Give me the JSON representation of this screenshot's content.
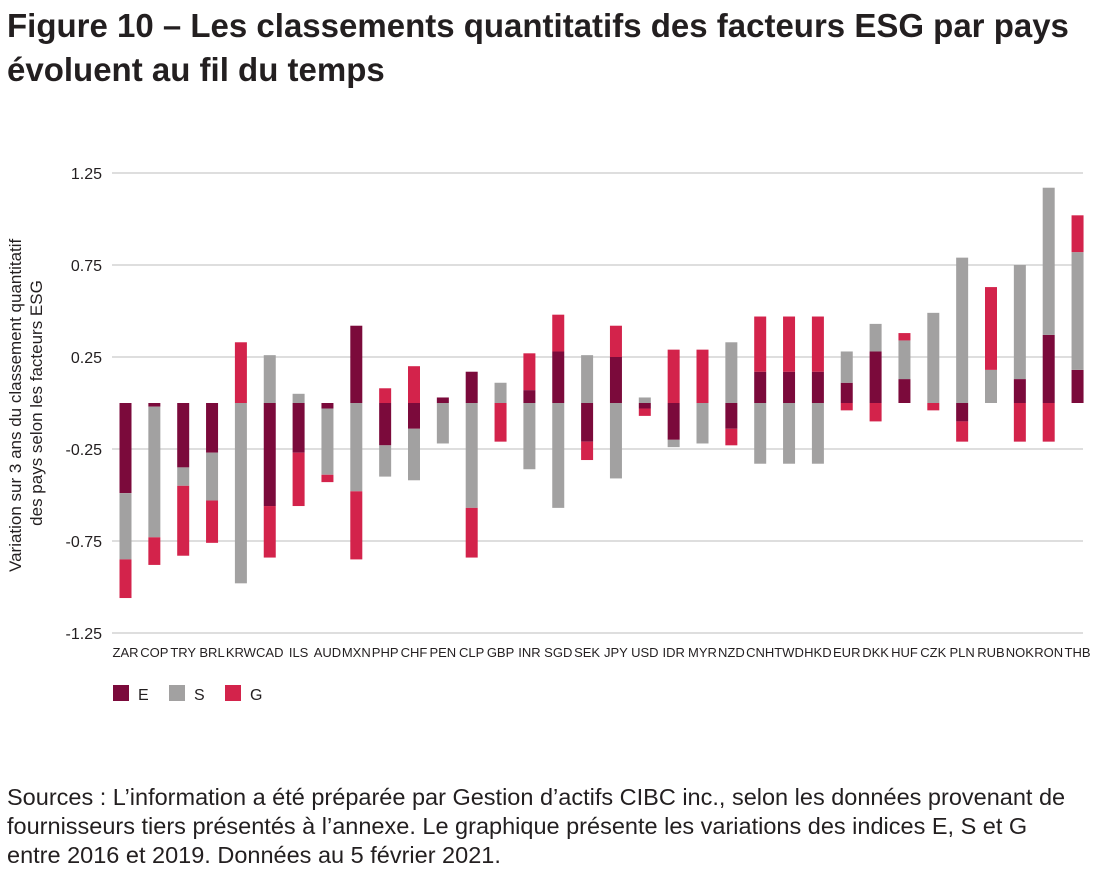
{
  "figure": {
    "title": "Figure 10 – Les classements quantitatifs des facteurs ESG par pays évoluent au fil du temps",
    "source": "Sources : L’information a été préparée par Gestion d’actifs CIBC inc., selon les données provenant de fournisseurs tiers présentés à l’annexe. Le graphique présente les variations des indices E, S et G entre 2016 et 2019. Données au 5 février 2021."
  },
  "chart_data": {
    "type": "bar",
    "stacked": true,
    "ylabel": "Variation sur 3 ans du classement quantitatif des pays selon les facteurs ESG",
    "ylabel_lines": [
      "Variation sur 3 ans du classement quantitatif",
      "des pays selon les facteurs ESG"
    ],
    "ylim": [
      -1.25,
      1.25
    ],
    "yticks": [
      1.25,
      0.75,
      0.25,
      -0.25,
      -0.75,
      -1.25
    ],
    "ytick_labels": [
      "1.25",
      "0.75",
      "0.25",
      "-0.25",
      "-0.75",
      "-1.25"
    ],
    "grid": true,
    "legend_position": "bottom-left",
    "categories": [
      "ZAR",
      "COP",
      "TRY",
      "BRL",
      "KRW",
      "CAD",
      "ILS",
      "AUD",
      "MXN",
      "PHP",
      "CHF",
      "PEN",
      "CLP",
      "GBP",
      "INR",
      "SGD",
      "SEK",
      "JPY",
      "USD",
      "IDR",
      "MYR",
      "NZD",
      "CNH",
      "TWD",
      "HKD",
      "EUR",
      "DKK",
      "HUF",
      "CZK",
      "PLN",
      "RUB",
      "NOK",
      "RON",
      "THB"
    ],
    "series": [
      {
        "name": "E",
        "color": "#7b0a3b",
        "values": [
          -0.49,
          -0.02,
          -0.35,
          -0.27,
          0.0,
          -0.56,
          -0.27,
          -0.03,
          0.42,
          -0.23,
          -0.14,
          0.03,
          0.17,
          0.0,
          0.07,
          0.28,
          -0.21,
          0.25,
          -0.03,
          -0.2,
          0.0,
          -0.14,
          0.17,
          0.17,
          0.17,
          0.11,
          0.28,
          0.13,
          0.0,
          -0.1,
          0.0,
          0.13,
          0.37,
          0.18
        ]
      },
      {
        "name": "S",
        "color": "#a2a1a1",
        "values": [
          -0.36,
          -0.71,
          -0.1,
          -0.26,
          -0.98,
          0.26,
          0.05,
          -0.36,
          -0.48,
          -0.17,
          -0.28,
          -0.22,
          -0.57,
          0.11,
          -0.36,
          -0.57,
          0.26,
          -0.41,
          0.03,
          -0.04,
          -0.22,
          0.33,
          -0.33,
          -0.33,
          -0.33,
          0.17,
          0.15,
          0.21,
          0.49,
          0.79,
          0.18,
          0.62,
          0.8,
          0.64
        ]
      },
      {
        "name": "G",
        "color": "#d3234b",
        "values": [
          -0.21,
          -0.15,
          -0.38,
          -0.23,
          0.33,
          -0.28,
          -0.29,
          -0.04,
          -0.37,
          0.08,
          0.2,
          0.0,
          -0.27,
          -0.21,
          0.2,
          0.2,
          -0.1,
          0.17,
          -0.04,
          0.29,
          0.29,
          -0.09,
          0.3,
          0.3,
          0.3,
          -0.04,
          -0.1,
          0.04,
          -0.04,
          -0.11,
          0.45,
          -0.21,
          -0.21,
          0.2
        ]
      }
    ]
  }
}
